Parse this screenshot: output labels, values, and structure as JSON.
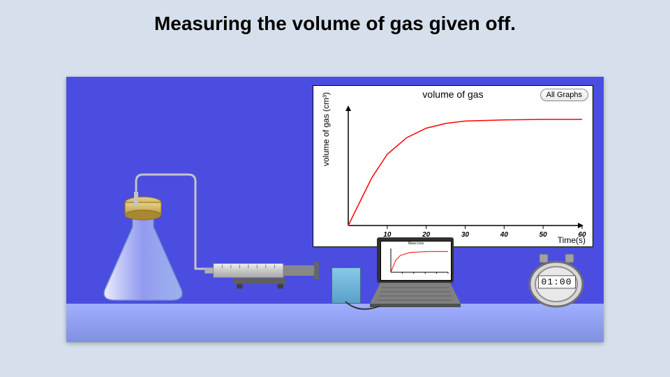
{
  "title": "Measuring the volume of gas given off.",
  "scene": {
    "bg_gradient_top": "#4a4de0",
    "bench_color_top": "#a0b0ff",
    "bench_color_bottom": "#8090e0"
  },
  "main_chart": {
    "type": "line",
    "title": "volume of gas",
    "ylabel": "volume of gas (cm³)",
    "xlabel": "Time(s)",
    "xlim": [
      0,
      60
    ],
    "ylim": [
      0,
      50
    ],
    "x_ticks": [
      10,
      20,
      30,
      40,
      50,
      60
    ],
    "line_color": "#ff0000",
    "axis_color": "#000000",
    "background_color": "#ffffff",
    "line_width": 1.5,
    "title_fontsize": 14,
    "label_fontsize": 12,
    "tick_fontsize": 10,
    "curve_points": [
      [
        0,
        0
      ],
      [
        3,
        10
      ],
      [
        6,
        20
      ],
      [
        10,
        30
      ],
      [
        15,
        37
      ],
      [
        20,
        41
      ],
      [
        25,
        43
      ],
      [
        30,
        44
      ],
      [
        40,
        44.5
      ],
      [
        50,
        44.7
      ],
      [
        60,
        44.7
      ]
    ],
    "all_graphs_label": "All Graphs"
  },
  "laptop_chart": {
    "title": "Mass loss",
    "line_color": "#ff0000",
    "curve_points": [
      [
        0,
        0
      ],
      [
        0.5,
        0.6
      ],
      [
        1,
        0.85
      ],
      [
        2,
        1
      ],
      [
        4,
        1.05
      ],
      [
        6,
        1.05
      ]
    ],
    "xlim": [
      0,
      6
    ],
    "ylim": [
      0,
      1.2
    ]
  },
  "apparatus": {
    "flask": {
      "glass_color": "#d8e8ff",
      "glass_outline": "#6a8ad0",
      "bung_color_top": "#e0c878",
      "bung_color_bottom": "#b89a40"
    },
    "syringe": {
      "barrel_color": "#d0d0d0",
      "plunger_color": "#888888",
      "stand_color": "#707070"
    },
    "tube_color": "#c4c4c4",
    "box_color": "#6ab4d8"
  },
  "stopwatch": {
    "display": "01:00",
    "body_color": "#c8c8c8",
    "rim_color": "#888888",
    "button_color": "#a0a0a0"
  }
}
